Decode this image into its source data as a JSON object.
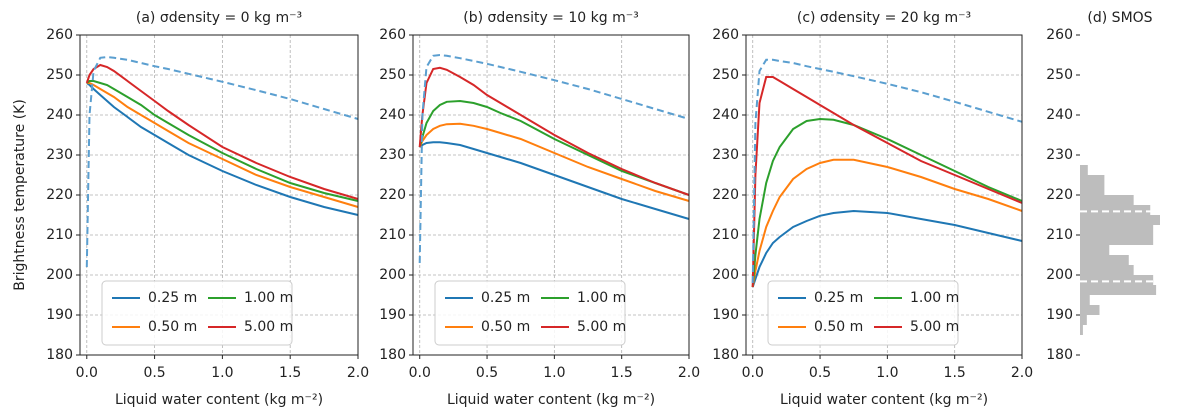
{
  "chart_data": [
    {
      "type": "line",
      "title": "(a) σdensity = 0 kg m⁻³",
      "xlabel": "Liquid water content (kg m⁻²)",
      "ylabel": "Brightness temperature (K)",
      "x": [
        0,
        0.02,
        0.05,
        0.1,
        0.15,
        0.2,
        0.3,
        0.4,
        0.5,
        0.6,
        0.75,
        1.0,
        1.25,
        1.5,
        1.75,
        2.0
      ],
      "xlim": [
        -0.05,
        2.0
      ],
      "xticks": [
        {
          "value": 0,
          "label": "0.0"
        },
        0.5,
        {
          "value": 1,
          "label": "1.0"
        },
        1.5,
        {
          "value": 2,
          "label": "2.0"
        }
      ],
      "ylim": [
        180,
        260
      ],
      "yticks": [
        180,
        190,
        200,
        210,
        220,
        230,
        240,
        250,
        260
      ],
      "grid": true,
      "legend": "lower left",
      "series": [
        {
          "name": "0.25 m",
          "color": "#1f77b4",
          "values": [
            248,
            247.5,
            246.5,
            245,
            243.5,
            242,
            239.5,
            237,
            235,
            233,
            230,
            226,
            222.5,
            219.5,
            217,
            215
          ]
        },
        {
          "name": "0.50 m",
          "color": "#ff7f0e",
          "values": [
            248,
            248,
            247.5,
            246.5,
            245.5,
            244.5,
            242,
            240,
            238,
            236,
            233,
            229,
            225,
            222,
            219.5,
            217
          ]
        },
        {
          "name": "1.00 m",
          "color": "#2ca02c",
          "values": [
            248,
            248.5,
            248.5,
            248,
            247.5,
            246.5,
            244.5,
            242.5,
            240,
            238,
            235,
            230.5,
            226.5,
            223,
            220.5,
            218.5
          ]
        },
        {
          "name": "5.00 m",
          "color": "#d62728",
          "values": [
            248,
            250,
            251.5,
            252.5,
            252,
            251,
            248.5,
            246,
            243.5,
            241,
            237.5,
            232,
            228,
            224.5,
            221.5,
            219
          ]
        },
        {
          "color": "#5b9fd0",
          "dash": true,
          "values": [
            202,
            240,
            251,
            254.3,
            254.5,
            254.3,
            253.8,
            253,
            252.2,
            251.5,
            250.3,
            248.3,
            246.2,
            244,
            241.5,
            239
          ]
        }
      ]
    },
    {
      "type": "line",
      "title": "(b) σdensity = 10 kg m⁻³",
      "xlabel": "Liquid water content (kg m⁻²)",
      "x": [
        0,
        0.02,
        0.05,
        0.1,
        0.15,
        0.2,
        0.3,
        0.4,
        0.5,
        0.6,
        0.75,
        1.0,
        1.25,
        1.5,
        1.75,
        2.0
      ],
      "xlim": [
        -0.05,
        2.0
      ],
      "xticks": [
        {
          "value": 0,
          "label": "0.0"
        },
        0.5,
        {
          "value": 1,
          "label": "1.0"
        },
        1.5,
        {
          "value": 2,
          "label": "2.0"
        }
      ],
      "ylim": [
        180,
        260
      ],
      "yticks": [
        180,
        190,
        200,
        210,
        220,
        230,
        240,
        250,
        260
      ],
      "grid": true,
      "legend": "lower left",
      "series": [
        {
          "name": "0.25 m",
          "color": "#1f77b4",
          "values": [
            232,
            232.5,
            233,
            233.2,
            233.2,
            233,
            232.5,
            231.5,
            230.5,
            229.5,
            228,
            225,
            222,
            219,
            216.5,
            214
          ]
        },
        {
          "name": "0.50 m",
          "color": "#ff7f0e",
          "values": [
            232,
            233.5,
            235,
            236.5,
            237.3,
            237.7,
            237.8,
            237.3,
            236.5,
            235.5,
            234,
            230.5,
            227,
            224,
            221,
            218.5
          ]
        },
        {
          "name": "1.00 m",
          "color": "#2ca02c",
          "values": [
            232,
            234.5,
            238,
            241,
            242.5,
            243.3,
            243.5,
            243,
            242,
            240.5,
            238.5,
            234,
            230,
            226,
            223,
            220
          ]
        },
        {
          "name": "5.00 m",
          "color": "#d62728",
          "values": [
            232,
            240,
            248,
            251.5,
            251.8,
            251.3,
            249.5,
            247.5,
            245,
            243,
            240,
            235,
            230.5,
            226.5,
            223,
            220
          ]
        },
        {
          "color": "#5b9fd0",
          "dash": true,
          "values": [
            203,
            240,
            252,
            254.8,
            255,
            254.8,
            254.2,
            253.5,
            252.8,
            252,
            250.8,
            248.7,
            246.5,
            244,
            241.5,
            239
          ]
        }
      ]
    },
    {
      "type": "line",
      "title": "(c) σdensity = 20 kg m⁻³",
      "xlabel": "Liquid water content (kg m⁻²)",
      "x": [
        0,
        0.02,
        0.05,
        0.1,
        0.15,
        0.2,
        0.3,
        0.4,
        0.5,
        0.6,
        0.75,
        1.0,
        1.25,
        1.5,
        1.75,
        2.0
      ],
      "xlim": [
        -0.05,
        2.0
      ],
      "xticks": [
        {
          "value": 0,
          "label": "0.0"
        },
        0.5,
        {
          "value": 1,
          "label": "1.0"
        },
        1.5,
        {
          "value": 2,
          "label": "2.0"
        }
      ],
      "ylim": [
        180,
        260
      ],
      "yticks": [
        180,
        190,
        200,
        210,
        220,
        230,
        240,
        250,
        260
      ],
      "grid": true,
      "legend": "lower left",
      "series": [
        {
          "name": "0.25 m",
          "color": "#1f77b4",
          "values": [
            197,
            199,
            202,
            205.5,
            208,
            209.5,
            212,
            213.5,
            214.8,
            215.5,
            216,
            215.5,
            214,
            212.5,
            210.5,
            208.5
          ]
        },
        {
          "name": "0.50 m",
          "color": "#ff7f0e",
          "values": [
            197,
            201,
            206,
            212,
            216,
            219.5,
            224,
            226.5,
            228,
            228.8,
            228.8,
            227,
            224.5,
            221.5,
            219,
            216
          ]
        },
        {
          "name": "1.00 m",
          "color": "#2ca02c",
          "values": [
            197,
            205,
            214,
            223,
            228.5,
            232,
            236.5,
            238.5,
            239,
            238.8,
            237.5,
            234,
            230,
            226,
            222,
            218.5
          ]
        },
        {
          "name": "5.00 m",
          "color": "#d62728",
          "values": [
            197,
            225,
            243,
            249.5,
            249.5,
            248.5,
            246.5,
            244.5,
            242.5,
            240.5,
            237.5,
            233,
            228.5,
            225,
            221.5,
            218
          ]
        },
        {
          "color": "#5b9fd0",
          "dash": true,
          "values": [
            198,
            238,
            251,
            253.8,
            253.8,
            253.5,
            253,
            252.2,
            251.5,
            250.8,
            249.7,
            247.8,
            245.7,
            243.3,
            240.8,
            238.3
          ]
        }
      ]
    },
    {
      "type": "histogram",
      "title": "(d) SMOS",
      "orientation": "horizontal",
      "color": "#bdbdbd",
      "bins": [
        185,
        187.5,
        190,
        192.5,
        195,
        197.5,
        200,
        202.5,
        205,
        207.5,
        210,
        212.5,
        215,
        217.5,
        220,
        222.5,
        225,
        227.5
      ],
      "counts": [
        3,
        7,
        20,
        10,
        78,
        75,
        55,
        50,
        30,
        75,
        75,
        82,
        72,
        55,
        25,
        25,
        8
      ],
      "hlines": [
        198.4,
        215.9
      ],
      "hline_color": "#ffffff",
      "ylim": [
        180,
        260
      ],
      "yticks": [
        180,
        190,
        200,
        210,
        220,
        230,
        240,
        250,
        260
      ]
    }
  ]
}
